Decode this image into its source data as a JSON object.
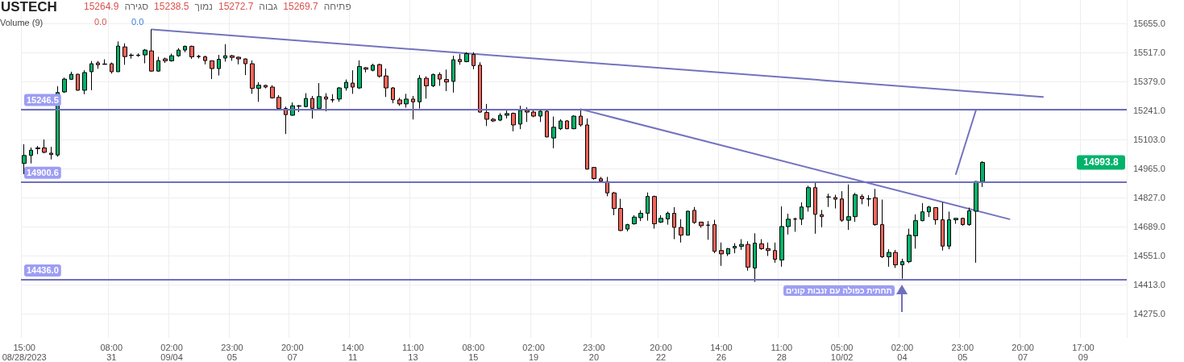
{
  "chart_data": {
    "type": "candlestick",
    "title": "USTECH",
    "annotations": [
      "15264.9",
      "סגירה",
      "15238.5",
      "נמוך",
      "15272.7",
      "גבוה",
      "15269.7",
      "פתיחה",
      "Volume (9)",
      "0.0",
      "0.0",
      "תחתית כפולה עם זנבות קונים",
      "14993.8"
    ],
    "categories": [
      "15:00\n08/28/2023",
      null,
      null,
      null,
      null,
      null,
      null,
      null,
      null,
      null,
      null,
      null,
      null,
      "08:00\n31",
      null,
      null,
      null,
      null,
      null,
      null,
      null,
      null,
      "02:00\n09/04",
      null,
      null,
      null,
      null,
      null,
      null,
      null,
      null,
      "23:00\n05",
      null,
      null,
      null,
      null,
      null,
      null,
      null,
      null,
      "20:00\n07",
      null,
      null,
      null,
      null,
      null,
      null,
      null,
      null,
      "14:00\n11",
      null,
      null,
      null,
      null,
      null,
      null,
      null,
      null,
      "11:00\n13",
      null,
      null,
      null,
      null,
      null,
      null,
      null,
      null,
      "08:00\n15",
      null,
      null,
      null,
      null,
      null,
      null,
      null,
      null,
      "02:00\n19",
      null,
      null,
      null,
      null,
      null,
      null,
      null,
      null,
      "23:00\n20",
      null,
      null,
      null,
      null,
      null,
      null,
      null,
      null,
      null,
      "20:00\n22",
      null,
      null,
      null,
      null,
      null,
      null,
      null,
      null,
      "14:00\n26",
      null,
      null,
      null,
      null,
      null,
      null,
      null,
      null,
      "11:00\n28",
      null,
      null,
      null,
      null,
      null,
      null,
      null,
      null,
      "05:00\n10/02",
      null,
      null,
      null,
      null,
      null,
      null,
      null,
      null,
      "02:00\n04",
      null,
      null,
      null,
      null,
      null,
      null,
      null,
      null,
      "23:00\n05",
      null,
      null,
      null,
      null,
      null,
      null,
      null,
      null,
      "20:00\n07",
      null,
      null,
      null,
      null,
      null,
      null,
      null,
      null,
      "17:00\n09",
      null,
      null,
      null,
      null,
      null,
      null
    ],
    "series": [
      {
        "ohlc": [
          [
            14989,
            15080,
            14938,
            15027
          ],
          [
            15027,
            15065,
            14989,
            15052
          ],
          [
            15059,
            15072,
            15033,
            15063
          ],
          [
            15063,
            15103,
            15037,
            15042
          ],
          [
            15038,
            15068,
            15008,
            15031
          ],
          [
            15029,
            15356,
            15021,
            15326
          ],
          [
            15329,
            15397,
            15324,
            15390
          ],
          [
            15389,
            15425,
            15386,
            15413
          ],
          [
            15413,
            15415,
            15335,
            15337
          ],
          [
            15337,
            15432,
            15318,
            15421
          ],
          [
            15425,
            15476,
            15337,
            15463
          ],
          [
            15467,
            15476,
            15439,
            15458
          ],
          [
            15462,
            15484,
            15459,
            15460
          ],
          [
            15463,
            15469,
            15416,
            15425
          ],
          [
            15425,
            15569,
            15425,
            15547
          ],
          [
            15543,
            15560,
            15458,
            15497
          ],
          [
            15502,
            15512,
            15487,
            15504
          ],
          [
            15502,
            15512,
            15496,
            15504
          ],
          [
            15505,
            15533,
            15465,
            15528
          ],
          [
            15524,
            15626,
            15425,
            15428
          ],
          [
            15428,
            15496,
            15425,
            15478
          ],
          [
            15486,
            15492,
            15467,
            15477
          ],
          [
            15477,
            15511,
            15473,
            15501
          ],
          [
            15501,
            15537,
            15496,
            15528
          ],
          [
            15528,
            15549,
            15518,
            15546
          ],
          [
            15546,
            15549,
            15486,
            15496
          ],
          [
            15498,
            15505,
            15488,
            15497
          ],
          [
            15496,
            15501,
            15460,
            15478
          ],
          [
            15477,
            15479,
            15390,
            15440
          ],
          [
            15440,
            15505,
            15407,
            15484
          ],
          [
            15490,
            15556,
            15473,
            15501
          ],
          [
            15501,
            15505,
            15477,
            15493
          ],
          [
            15494,
            15497,
            15460,
            15486
          ],
          [
            15486,
            15488,
            15409,
            15463
          ],
          [
            15463,
            15479,
            15320,
            15346
          ],
          [
            15346,
            15375,
            15282,
            15361
          ],
          [
            15360,
            15363,
            15346,
            15352
          ],
          [
            15352,
            15361,
            15297,
            15301
          ],
          [
            15303,
            15314,
            15244,
            15250
          ],
          [
            15250,
            15259,
            15129,
            15221
          ],
          [
            15218,
            15279,
            15216,
            15263
          ],
          [
            15261,
            15267,
            15233,
            15263
          ],
          [
            15259,
            15323,
            15256,
            15298
          ],
          [
            15298,
            15310,
            15202,
            15251
          ],
          [
            15251,
            15371,
            15251,
            15307
          ],
          [
            15305,
            15323,
            15237,
            15295
          ],
          [
            15291,
            15318,
            15279,
            15292
          ],
          [
            15295,
            15352,
            15282,
            15348
          ],
          [
            15348,
            15388,
            15335,
            15375
          ],
          [
            15371,
            15432,
            15320,
            15352
          ],
          [
            15348,
            15479,
            15343,
            15450
          ],
          [
            15444,
            15447,
            15422,
            15437
          ],
          [
            15432,
            15463,
            15427,
            15456
          ],
          [
            15459,
            15463,
            15397,
            15404
          ],
          [
            15405,
            15440,
            15305,
            15348
          ],
          [
            15348,
            15352,
            15275,
            15292
          ],
          [
            15291,
            15301,
            15263,
            15272
          ],
          [
            15272,
            15320,
            15254,
            15295
          ],
          [
            15295,
            15310,
            15198,
            15282
          ],
          [
            15282,
            15409,
            15250,
            15394
          ],
          [
            15394,
            15403,
            15297,
            15358
          ],
          [
            15358,
            15416,
            15352,
            15412
          ],
          [
            15412,
            15422,
            15358,
            15390
          ],
          [
            15388,
            15435,
            15333,
            15376
          ],
          [
            15379,
            15501,
            15326,
            15482
          ],
          [
            15483,
            15509,
            15458,
            15473
          ],
          [
            15473,
            15518,
            15470,
            15511
          ],
          [
            15507,
            15518,
            15437,
            15454
          ],
          [
            15456,
            15470,
            15231,
            15233
          ],
          [
            15231,
            15272,
            15167,
            15199
          ],
          [
            15199,
            15205,
            15186,
            15191
          ],
          [
            15195,
            15228,
            15190,
            15218
          ],
          [
            15218,
            15240,
            15203,
            15226
          ],
          [
            15227,
            15231,
            15142,
            15172
          ],
          [
            15176,
            15263,
            15152,
            15241
          ],
          [
            15241,
            15256,
            15186,
            15233
          ],
          [
            15233,
            15241,
            15209,
            15214
          ],
          [
            15214,
            15244,
            15186,
            15237
          ],
          [
            15237,
            15246,
            15113,
            15115
          ],
          [
            15110,
            15212,
            15061,
            15161
          ],
          [
            15154,
            15199,
            15148,
            15191
          ],
          [
            15191,
            15195,
            15152,
            15154
          ],
          [
            15154,
            15218,
            15152,
            15214
          ],
          [
            15214,
            15244,
            15164,
            15172
          ],
          [
            15172,
            15203,
            14960,
            14962
          ],
          [
            14970,
            14972,
            14912,
            14917
          ],
          [
            14916,
            14925,
            14900,
            14905
          ],
          [
            14903,
            14925,
            14833,
            14849
          ],
          [
            14849,
            14854,
            14743,
            14775
          ],
          [
            14775,
            14821,
            14668,
            14670
          ],
          [
            14677,
            14702,
            14666,
            14698
          ],
          [
            14702,
            14743,
            14698,
            14734
          ],
          [
            14731,
            14766,
            14715,
            14752
          ],
          [
            14752,
            14851,
            14717,
            14832
          ],
          [
            14832,
            14836,
            14679,
            14702
          ],
          [
            14710,
            14743,
            14706,
            14728
          ],
          [
            14725,
            14760,
            14698,
            14752
          ],
          [
            14752,
            14781,
            14629,
            14685
          ],
          [
            14685,
            14724,
            14613,
            14648
          ],
          [
            14648,
            14764,
            14647,
            14762
          ],
          [
            14766,
            14782,
            14702,
            14708
          ],
          [
            14710,
            14711,
            14683,
            14693
          ],
          [
            14696,
            14715,
            14626,
            14695
          ],
          [
            14698,
            14721,
            14562,
            14571
          ],
          [
            14575,
            14613,
            14502,
            14559
          ],
          [
            14559,
            14587,
            14549,
            14584
          ],
          [
            14587,
            14610,
            14562,
            14595
          ],
          [
            14595,
            14629,
            14578,
            14604
          ],
          [
            14604,
            14619,
            14479,
            14496
          ],
          [
            14492,
            14657,
            14426,
            14610
          ],
          [
            14607,
            14629,
            14578,
            14584
          ],
          [
            14584,
            14613,
            14549,
            14575
          ],
          [
            14575,
            14613,
            14517,
            14533
          ],
          [
            14530,
            14785,
            14498,
            14689
          ],
          [
            14689,
            14750,
            14651,
            14724
          ],
          [
            14724,
            14731,
            14664,
            14725
          ],
          [
            14724,
            14804,
            14696,
            14782
          ],
          [
            14782,
            14883,
            14760,
            14874
          ],
          [
            14874,
            14900,
            14655,
            14747
          ],
          [
            14745,
            14768,
            14685,
            14736
          ],
          [
            14829,
            14845,
            14782,
            14830
          ],
          [
            14827,
            14840,
            14775,
            14819
          ],
          [
            14820,
            14857,
            14711,
            14719
          ],
          [
            14719,
            14889,
            14673,
            14736
          ],
          [
            14736,
            14849,
            14711,
            14840
          ],
          [
            14832,
            14842,
            14795,
            14821
          ],
          [
            14821,
            14838,
            14785,
            14820
          ],
          [
            14826,
            14868,
            14693,
            14698
          ],
          [
            14698,
            14817,
            14540,
            14545
          ],
          [
            14545,
            14581,
            14498,
            14566
          ],
          [
            14566,
            14578,
            14492,
            14507
          ],
          [
            14507,
            14536,
            14441,
            14522
          ],
          [
            14522,
            14679,
            14515,
            14648
          ],
          [
            14645,
            14747,
            14584,
            14717
          ],
          [
            14717,
            14800,
            14714,
            14759
          ],
          [
            14759,
            14787,
            14734,
            14782
          ],
          [
            14779,
            14780,
            14698,
            14721
          ],
          [
            14721,
            14804,
            14575,
            14596
          ],
          [
            14596,
            14760,
            14581,
            14721
          ],
          [
            14721,
            14728,
            14702,
            14728
          ],
          [
            14728,
            14731,
            14693,
            14698
          ],
          [
            14698,
            14779,
            14693,
            14764
          ],
          [
            14762,
            14905,
            14517,
            14903
          ],
          [
            14903,
            15000,
            14877,
            14993.8
          ],
          null,
          null,
          null,
          null,
          null,
          null,
          null,
          null,
          null,
          null,
          null,
          null,
          null,
          null,
          null,
          null,
          null,
          null,
          null,
          null,
          null
        ]
      },
      {
        "type": "line",
        "color": "#7373c0",
        "values": [
          null,
          null,
          null,
          null,
          null,
          null,
          null,
          null,
          null,
          null,
          null,
          null,
          null,
          null,
          null,
          null,
          null,
          null,
          null,
          15626,
          null,
          null,
          null,
          null,
          null,
          null,
          null,
          null,
          null,
          null,
          null,
          null,
          null,
          null,
          null,
          null,
          null,
          null,
          null,
          null,
          null,
          null,
          null,
          null,
          null,
          null,
          null,
          null,
          null,
          null,
          null,
          null,
          null,
          null,
          null,
          null,
          null,
          null,
          null,
          null,
          null,
          null,
          null,
          null,
          null,
          null,
          null,
          null,
          null,
          null,
          null,
          null,
          null,
          null,
          null,
          null,
          null,
          null,
          null,
          null,
          null,
          null,
          null,
          null,
          null,
          null,
          null,
          null,
          null,
          null,
          null,
          null,
          null,
          null,
          null,
          null,
          null,
          null,
          null,
          null,
          null,
          null,
          null,
          null,
          null,
          null,
          null,
          null,
          null,
          null,
          null,
          null,
          null,
          null,
          null,
          null,
          null,
          null,
          null,
          null,
          null,
          null,
          null,
          null,
          null,
          null,
          null,
          null,
          null,
          null,
          null,
          null,
          null,
          null,
          null,
          null,
          null,
          null,
          null,
          null,
          null,
          null,
          null,
          null,
          null,
          null,
          null,
          null,
          null,
          null,
          null,
          null,
          15305,
          null,
          null,
          null,
          null,
          null,
          null,
          null,
          null,
          null,
          null,
          null,
          null
        ]
      },
      {
        "type": "line",
        "color": "#7373c0",
        "values": [
          null,
          null,
          null,
          null,
          null,
          null,
          null,
          null,
          null,
          null,
          null,
          null,
          null,
          null,
          null,
          null,
          null,
          null,
          null,
          null,
          null,
          null,
          null,
          null,
          null,
          null,
          null,
          null,
          null,
          null,
          null,
          null,
          null,
          null,
          null,
          null,
          null,
          null,
          null,
          null,
          null,
          null,
          null,
          null,
          null,
          null,
          null,
          null,
          null,
          null,
          null,
          null,
          null,
          null,
          null,
          null,
          null,
          null,
          null,
          null,
          null,
          null,
          null,
          null,
          null,
          null,
          null,
          null,
          null,
          null,
          null,
          null,
          null,
          null,
          null,
          null,
          null,
          null,
          null,
          null,
          null,
          null,
          null,
          15247,
          null,
          null,
          null,
          null,
          null,
          null,
          null,
          null,
          null,
          null,
          null,
          null,
          null,
          null,
          null,
          null,
          null,
          null,
          null,
          null,
          null,
          null,
          null,
          null,
          null,
          null,
          null,
          null,
          null,
          null,
          null,
          null,
          null,
          null,
          null,
          null,
          null,
          null,
          null,
          null,
          null,
          null,
          null,
          null,
          null,
          null,
          null,
          null,
          null,
          null,
          null,
          null,
          null,
          null,
          null,
          null,
          null,
          null,
          null,
          null,
          null,
          null,
          null,
          14724,
          null,
          null,
          null,
          null,
          null,
          null,
          null,
          null,
          null,
          null,
          null,
          null,
          null,
          null,
          null,
          null,
          null
        ]
      },
      {
        "type": "line",
        "color": "#7373c0",
        "values": [
          null,
          null,
          null,
          null,
          null,
          null,
          null,
          null,
          null,
          null,
          null,
          null,
          null,
          null,
          null,
          null,
          null,
          null,
          null,
          null,
          null,
          null,
          null,
          null,
          null,
          null,
          null,
          null,
          null,
          null,
          null,
          null,
          null,
          null,
          null,
          null,
          null,
          null,
          null,
          null,
          null,
          null,
          null,
          null,
          null,
          null,
          null,
          null,
          null,
          null,
          null,
          null,
          null,
          null,
          null,
          null,
          null,
          null,
          null,
          null,
          null,
          null,
          null,
          null,
          null,
          null,
          null,
          null,
          null,
          null,
          null,
          null,
          null,
          null,
          null,
          null,
          null,
          null,
          null,
          null,
          null,
          null,
          null,
          null,
          null,
          null,
          null,
          null,
          null,
          null,
          null,
          null,
          null,
          null,
          null,
          null,
          null,
          null,
          null,
          null,
          null,
          null,
          null,
          null,
          null,
          null,
          null,
          null,
          null,
          null,
          null,
          null,
          null,
          null,
          null,
          null,
          null,
          null,
          null,
          null,
          null,
          null,
          null,
          null,
          null,
          null,
          null,
          null,
          null,
          null,
          null,
          null,
          null,
          null,
          null,
          null,
          null,
          null,
          null,
          14938,
          null,
          null,
          15243,
          null,
          null,
          null,
          null,
          null,
          null,
          null,
          null,
          null,
          null,
          null,
          null,
          null,
          null,
          null,
          null,
          null,
          null,
          null,
          null,
          null,
          null
        ]
      }
    ],
    "ylim": [
      14160,
      15766
    ],
    "yticks": [
      {
        "value": 15655,
        "label": "15655.0"
      },
      {
        "value": 15517,
        "label": "15517.0"
      },
      {
        "value": 15379,
        "label": "15379.0"
      },
      {
        "value": 15241,
        "label": "15241.0"
      },
      {
        "value": 15103,
        "label": "15103.0"
      },
      {
        "value": 14965,
        "label": "14965.0"
      },
      {
        "value": 14827,
        "label": "14827.0"
      },
      {
        "value": 14689,
        "label": "14689.0"
      },
      {
        "value": 14551,
        "label": "14551.0"
      },
      {
        "value": 14413,
        "label": "14413.0"
      },
      {
        "value": 14275,
        "label": "14275.0"
      }
    ],
    "ref_lines": [
      {
        "axis": "y",
        "value": 15246.5,
        "label": "15246.5",
        "color": "#6f6fbf"
      },
      {
        "axis": "y",
        "value": 14900.6,
        "label": "14900.6",
        "color": "#6f6fbf"
      },
      {
        "axis": "y",
        "value": 14436.0,
        "label": "14436.0",
        "color": "#6f6fbf"
      }
    ],
    "grid": true
  }
}
